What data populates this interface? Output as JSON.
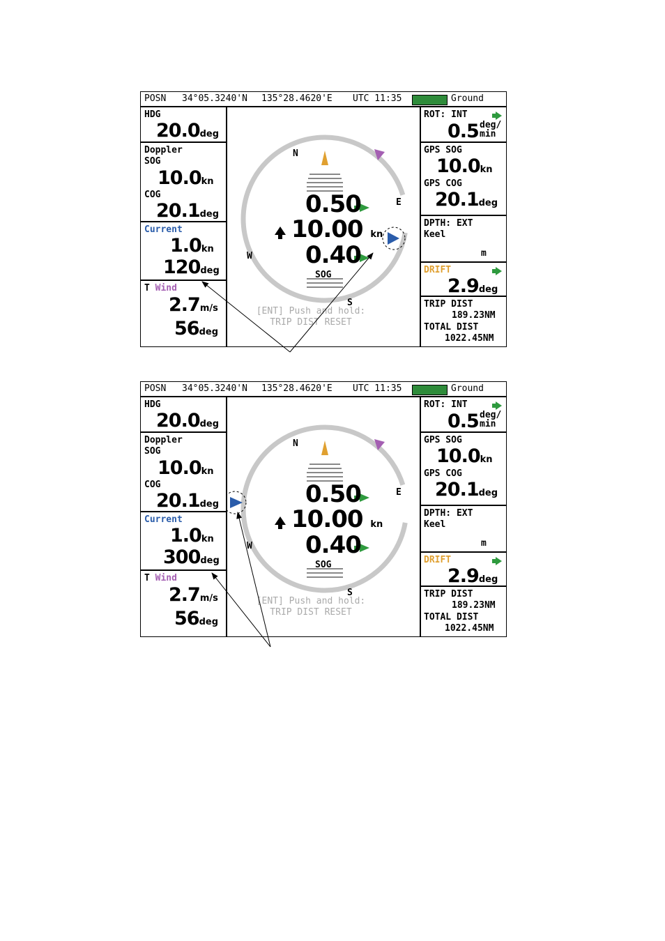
{
  "screens": [
    {
      "header": {
        "posn_label": "POSN",
        "lat": "34°05.3240'N",
        "lon": "135°28.4620'E",
        "utc": "UTC 11:35",
        "mode": "Ground"
      },
      "left": {
        "hdg_label": "HDG",
        "hdg_value": "20.0",
        "hdg_unit": "deg",
        "doppler_label": "Doppler",
        "sog_label": "SOG",
        "sog_value": "10.0",
        "sog_unit": "kn",
        "cog_label": "COG",
        "cog_value": "20.1",
        "cog_unit": "deg",
        "current_label": "Current",
        "current_speed": "1.0",
        "current_speed_unit": "kn",
        "current_dir": "120",
        "current_dir_unit": "deg",
        "wind_prefix": "T",
        "wind_label": "Wind",
        "wind_speed": "2.7",
        "wind_speed_unit": "m/s",
        "wind_dir": "56",
        "wind_dir_unit": "deg"
      },
      "center": {
        "n": "N",
        "e": "E",
        "s": "S",
        "w": "W",
        "value_top": "0.50",
        "value_mid": "10.00",
        "value_mid_unit": "kn",
        "value_bot": "0.40",
        "sog_label": "SOG",
        "hint_line1": "[ENT] Push and hold:",
        "hint_line2": "TRIP DIST RESET"
      },
      "right": {
        "rot_label": "ROT: INT",
        "rot_value": "0.5",
        "rot_unit_top": "deg/",
        "rot_unit_bot": "min",
        "gps_sog_label": "GPS SOG",
        "gps_sog_value": "10.0",
        "gps_sog_unit": "kn",
        "gps_cog_label": "GPS COG",
        "gps_cog_value": "20.1",
        "gps_cog_unit": "deg",
        "dpth_label": "DPTH: EXT",
        "keel_label": "Keel",
        "dpth_unit": "m",
        "drift_label": "DRIFT",
        "drift_value": "2.9",
        "drift_unit": "deg",
        "trip_label": "TRIP DIST",
        "trip_value": "189.23NM",
        "total_label": "TOTAL DIST",
        "total_value": "1022.45NM"
      }
    },
    {
      "header": {
        "posn_label": "POSN",
        "lat": "34°05.3240'N",
        "lon": "135°28.4620'E",
        "utc": "UTC 11:35",
        "mode": "Ground"
      },
      "left": {
        "hdg_label": "HDG",
        "hdg_value": "20.0",
        "hdg_unit": "deg",
        "doppler_label": "Doppler",
        "sog_label": "SOG",
        "sog_value": "10.0",
        "sog_unit": "kn",
        "cog_label": "COG",
        "cog_value": "20.1",
        "cog_unit": "deg",
        "current_label": "Current",
        "current_speed": "1.0",
        "current_speed_unit": "kn",
        "current_dir": "300",
        "current_dir_unit": "deg",
        "wind_prefix": "T",
        "wind_label": "Wind",
        "wind_speed": "2.7",
        "wind_speed_unit": "m/s",
        "wind_dir": "56",
        "wind_dir_unit": "deg"
      },
      "center": {
        "n": "N",
        "e": "E",
        "s": "S",
        "w": "W",
        "value_top": "0.50",
        "value_mid": "10.00",
        "value_mid_unit": "kn",
        "value_bot": "0.40",
        "sog_label": "SOG",
        "hint_line1": "[ENT] Push and hold:",
        "hint_line2": "TRIP DIST RESET"
      },
      "right": {
        "rot_label": "ROT: INT",
        "rot_value": "0.5",
        "rot_unit_top": "deg/",
        "rot_unit_bot": "min",
        "gps_sog_label": "GPS SOG",
        "gps_sog_value": "10.0",
        "gps_sog_unit": "kn",
        "gps_cog_label": "GPS COG",
        "gps_cog_value": "20.1",
        "gps_cog_unit": "deg",
        "dpth_label": "DPTH: EXT",
        "keel_label": "Keel",
        "dpth_unit": "m",
        "drift_label": "DRIFT",
        "drift_value": "2.9",
        "drift_unit": "deg",
        "trip_label": "TRIP DIST",
        "trip_value": "189.23NM",
        "total_label": "TOTAL DIST",
        "total_value": "1022.45NM"
      }
    }
  ],
  "colors": {
    "green": "#2e9a3e",
    "blue": "#2a5caa",
    "purple": "#a45fb2",
    "orange": "#e0a030",
    "ring": "#c8c8c8"
  }
}
